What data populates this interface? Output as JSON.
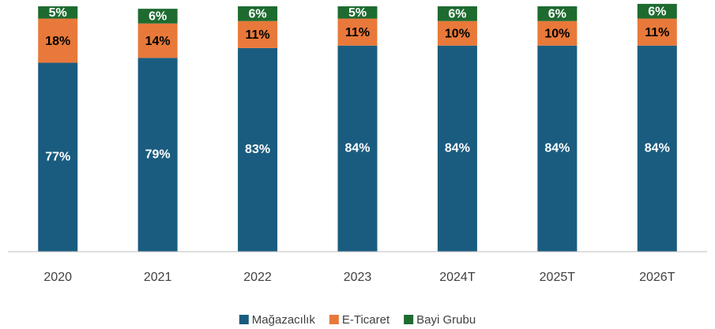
{
  "chart_data": {
    "type": "stacked_bar",
    "categories": [
      "2020",
      "2021",
      "2022",
      "2023",
      "2024T",
      "2025T",
      "2026T"
    ],
    "series": [
      {
        "name": "Mağazacılık",
        "color": "#1a5c80",
        "values": [
          77,
          79,
          83,
          84,
          84,
          84,
          84
        ],
        "value_labels": [
          "77%",
          "79%",
          "83%",
          "84%",
          "84%",
          "84%",
          "84%"
        ]
      },
      {
        "name": "E-Ticaret",
        "color": "#e8793a",
        "values": [
          18,
          14,
          11,
          11,
          10,
          10,
          11
        ],
        "value_labels": [
          "18%",
          "14%",
          "11%",
          "11%",
          "10%",
          "10%",
          "11%"
        ]
      },
      {
        "name": "Bayi Grubu",
        "color": "#1e6b30",
        "values": [
          5,
          6,
          6,
          5,
          6,
          6,
          6
        ],
        "value_labels": [
          "5%",
          "6%",
          "6%",
          "5%",
          "6%",
          "6%",
          "6%"
        ]
      }
    ],
    "ylim": [
      0,
      100
    ],
    "legend": "bottom"
  }
}
